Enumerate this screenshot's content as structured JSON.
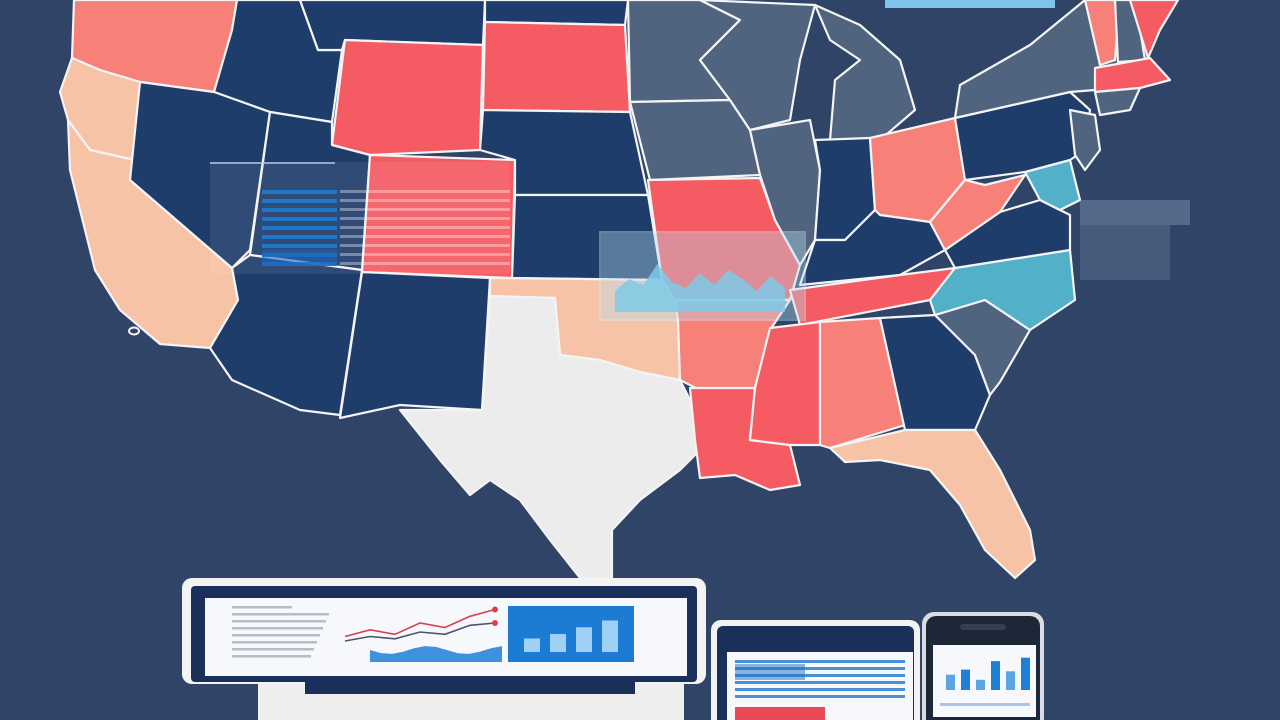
{
  "palette": {
    "background": "#2f4467",
    "navy": "#1f3d6b",
    "slate": "#51647f",
    "red": "#f45b62",
    "coral": "#f78078",
    "peach": "#f6c3a6",
    "light": "#ececec",
    "teal": "#52b1c8",
    "accent_blue": "#1d7fd6",
    "outline": "#f4f4f4"
  },
  "map": {
    "states": [
      {
        "id": "WA",
        "fill": "coral"
      },
      {
        "id": "OR",
        "fill": "peach"
      },
      {
        "id": "CA",
        "fill": "peach"
      },
      {
        "id": "ID",
        "fill": "navy"
      },
      {
        "id": "NV",
        "fill": "navy"
      },
      {
        "id": "MT",
        "fill": "navy"
      },
      {
        "id": "WY",
        "fill": "red"
      },
      {
        "id": "UT",
        "fill": "navy"
      },
      {
        "id": "CO",
        "fill": "red"
      },
      {
        "id": "AZ",
        "fill": "navy"
      },
      {
        "id": "NM",
        "fill": "navy"
      },
      {
        "id": "ND",
        "fill": "navy"
      },
      {
        "id": "SD",
        "fill": "red"
      },
      {
        "id": "NE",
        "fill": "navy"
      },
      {
        "id": "KS",
        "fill": "navy"
      },
      {
        "id": "OK",
        "fill": "peach"
      },
      {
        "id": "TX",
        "fill": "light"
      },
      {
        "id": "MN",
        "fill": "slate"
      },
      {
        "id": "IA",
        "fill": "slate"
      },
      {
        "id": "MO",
        "fill": "red"
      },
      {
        "id": "AR",
        "fill": "coral"
      },
      {
        "id": "LA",
        "fill": "red"
      },
      {
        "id": "WI",
        "fill": "slate"
      },
      {
        "id": "IL",
        "fill": "slate"
      },
      {
        "id": "MI",
        "fill": "slate"
      },
      {
        "id": "IN",
        "fill": "navy"
      },
      {
        "id": "OH",
        "fill": "coral"
      },
      {
        "id": "KY",
        "fill": "navy"
      },
      {
        "id": "TN",
        "fill": "red"
      },
      {
        "id": "MS",
        "fill": "red"
      },
      {
        "id": "AL",
        "fill": "coral"
      },
      {
        "id": "GA",
        "fill": "navy"
      },
      {
        "id": "FL",
        "fill": "peach"
      },
      {
        "id": "SC",
        "fill": "slate"
      },
      {
        "id": "NC",
        "fill": "teal"
      },
      {
        "id": "VA",
        "fill": "navy"
      },
      {
        "id": "WV",
        "fill": "coral"
      },
      {
        "id": "PA",
        "fill": "navy"
      },
      {
        "id": "NY",
        "fill": "slate"
      },
      {
        "id": "VT",
        "fill": "coral"
      },
      {
        "id": "NH",
        "fill": "slate"
      },
      {
        "id": "ME",
        "fill": "red"
      },
      {
        "id": "MA",
        "fill": "red"
      },
      {
        "id": "CT",
        "fill": "slate"
      },
      {
        "id": "NJ",
        "fill": "slate"
      },
      {
        "id": "MD",
        "fill": "teal"
      }
    ]
  },
  "overlays": {
    "area_chart_values": [
      0.35,
      0.55,
      0.45,
      0.8,
      0.5,
      0.4,
      0.65,
      0.45,
      0.7,
      0.55,
      0.35,
      0.6,
      0.4
    ]
  },
  "laptop": {
    "line_series_a": [
      0.3,
      0.45,
      0.35,
      0.6,
      0.5,
      0.75,
      0.9
    ],
    "line_series_b": [
      0.2,
      0.3,
      0.25,
      0.4,
      0.35,
      0.55,
      0.6
    ],
    "bar_values": [
      0.3,
      0.4,
      0.55,
      0.7
    ]
  },
  "tablet": {
    "text_rows": 6
  },
  "phone": {
    "bar_values": [
      0.45,
      0.6,
      0.3,
      0.85,
      0.55,
      0.95
    ]
  }
}
